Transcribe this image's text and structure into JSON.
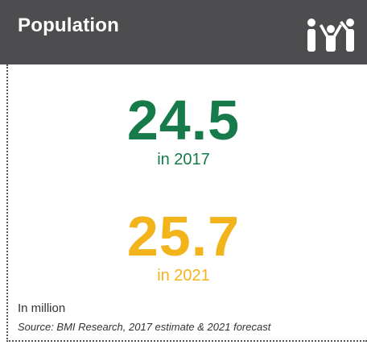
{
  "header": {
    "title": "Population",
    "icon": "people-group-icon"
  },
  "stats": [
    {
      "value": "24.5",
      "caption": "in 2017",
      "color": "#167a4a"
    },
    {
      "value": "25.7",
      "caption": "in 2021",
      "color": "#f2b31b"
    }
  ],
  "footer": {
    "unit_note": "In million",
    "source": "Source: BMI Research, 2017 estimate & 2021 forecast"
  },
  "colors": {
    "header_bg": "#4d4d4f",
    "header_text": "#ffffff"
  }
}
